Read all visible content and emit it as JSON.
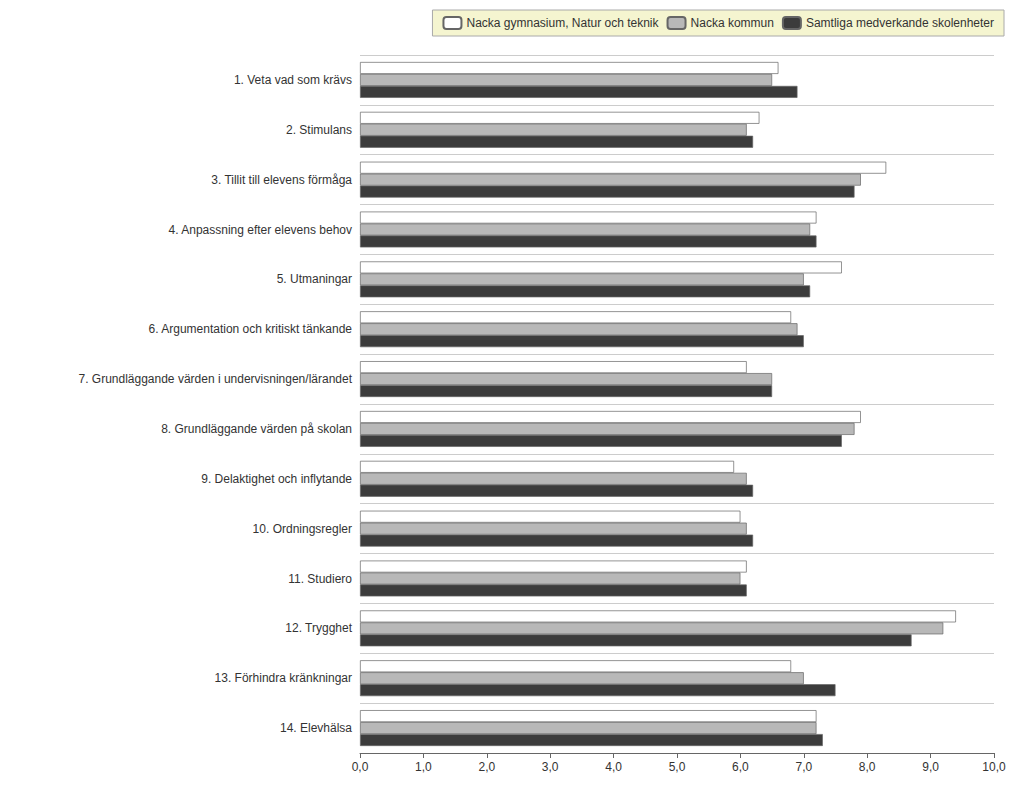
{
  "chart_data": {
    "type": "bar",
    "orientation": "horizontal",
    "categories": [
      "1. Veta vad som krävs",
      "2. Stimulans",
      "3. Tillit till elevens förmåga",
      "4. Anpassning efter elevens behov",
      "5. Utmaningar",
      "6. Argumentation och kritiskt tänkande",
      "7. Grundläggande värden i undervisningen/lärandet",
      "8. Grundläggande värden på skolan",
      "9. Delaktighet och inflytande",
      "10. Ordningsregler",
      "11. Studiero",
      "12. Trygghet",
      "13. Förhindra kränkningar",
      "14. Elevhälsa"
    ],
    "series": [
      {
        "name": "Nacka gymnasium, Natur och teknik",
        "color": "#ffffff",
        "values": [
          6.6,
          6.3,
          8.3,
          7.2,
          7.6,
          6.8,
          6.1,
          7.9,
          5.9,
          6.0,
          6.1,
          9.4,
          6.8,
          7.2
        ]
      },
      {
        "name": "Nacka kommun",
        "color": "#b8b8b8",
        "values": [
          6.5,
          6.1,
          7.9,
          7.1,
          7.0,
          6.9,
          6.5,
          7.8,
          6.1,
          6.1,
          6.0,
          9.2,
          7.0,
          7.2
        ]
      },
      {
        "name": "Samtliga medverkande skolenheter",
        "color": "#3c3c3c",
        "values": [
          6.9,
          6.2,
          7.8,
          7.2,
          7.1,
          7.0,
          6.5,
          7.6,
          6.2,
          6.2,
          6.1,
          8.7,
          7.5,
          7.3
        ]
      }
    ],
    "xlim": [
      0,
      10
    ],
    "xticks": [
      {
        "value": 0,
        "label": "0,0"
      },
      {
        "value": 1,
        "label": "1,0"
      },
      {
        "value": 2,
        "label": "2,0"
      },
      {
        "value": 3,
        "label": "3,0"
      },
      {
        "value": 4,
        "label": "4,0"
      },
      {
        "value": 5,
        "label": "5,0"
      },
      {
        "value": 6,
        "label": "6,0"
      },
      {
        "value": 7,
        "label": "7,0"
      },
      {
        "value": 8,
        "label": "8,0"
      },
      {
        "value": 9,
        "label": "9,0"
      },
      {
        "value": 10,
        "label": "10,0"
      }
    ],
    "grid": false,
    "legend": "upper right"
  }
}
